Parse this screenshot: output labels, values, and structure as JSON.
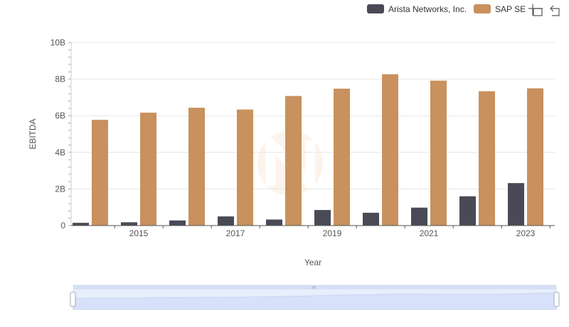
{
  "legend": [
    {
      "name": "Arista Networks, Inc.",
      "color": "#4a4a57"
    },
    {
      "name": "SAP SE",
      "color": "#c8915e"
    }
  ],
  "toolbar": {
    "icons": [
      "zoom-icon",
      "zoom-reset-icon"
    ]
  },
  "chart_data": {
    "type": "bar",
    "title": "",
    "xlabel": "Year",
    "ylabel": "EBITDA",
    "categories": [
      "2014",
      "2015",
      "2016",
      "2017",
      "2018",
      "2019",
      "2020",
      "2021",
      "2022",
      "2023"
    ],
    "x_tick_labels": [
      "2015",
      "2017",
      "2019",
      "2021",
      "2023"
    ],
    "y_tick_labels": [
      "0",
      "2B",
      "4B",
      "6B",
      "8B",
      "10B"
    ],
    "ylim": [
      0,
      10000000000
    ],
    "grid": true,
    "legend_position": "top-right",
    "series": [
      {
        "name": "Arista Networks, Inc.",
        "color": "#4a4a57",
        "values": [
          150000000,
          180000000,
          280000000,
          500000000,
          330000000,
          850000000,
          700000000,
          980000000,
          1600000000,
          2320000000
        ]
      },
      {
        "name": "SAP SE",
        "color": "#c8915e",
        "values": [
          5780000000,
          6170000000,
          6440000000,
          6340000000,
          7080000000,
          7480000000,
          8270000000,
          7920000000,
          7340000000,
          7500000000
        ]
      }
    ]
  }
}
